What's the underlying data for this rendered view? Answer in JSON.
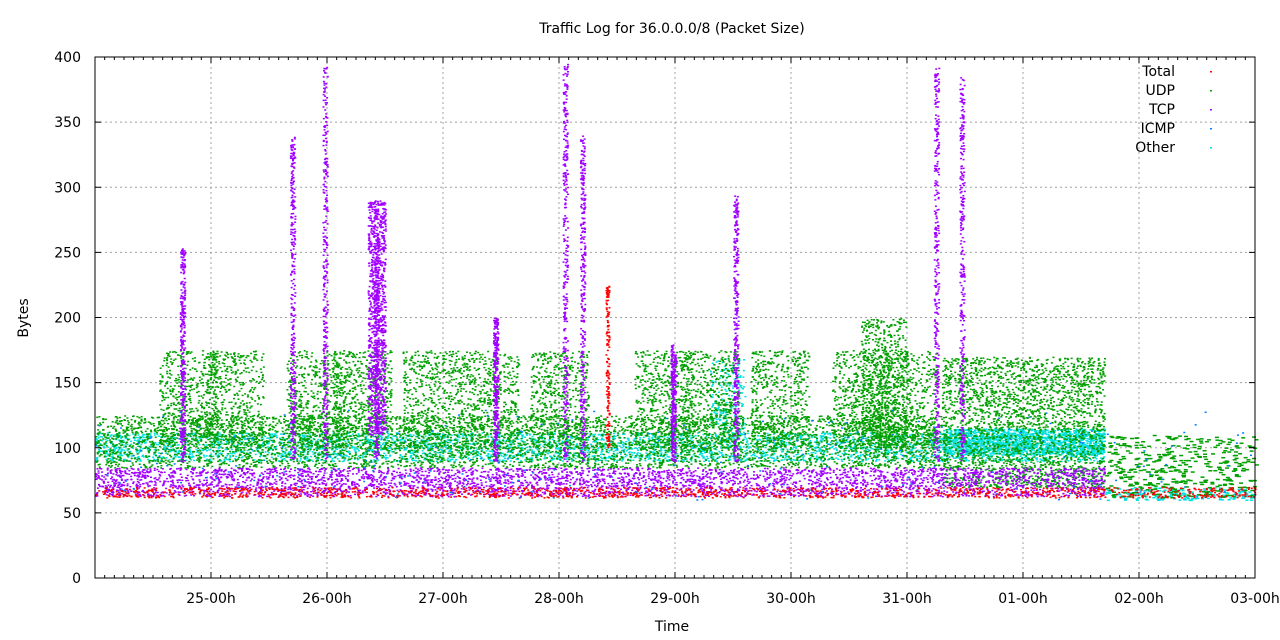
{
  "chart_data": {
    "type": "scatter",
    "title": "Traffic Log for 36.0.0.0/8 (Packet Size)",
    "xlabel": "Time",
    "ylabel": "Bytes",
    "ylim": [
      0,
      400
    ],
    "yticks": [
      0,
      50,
      100,
      150,
      200,
      250,
      300,
      350,
      400
    ],
    "xlim": [
      0,
      10
    ],
    "xticks": [
      {
        "label": "25-00h",
        "value": 1
      },
      {
        "label": "26-00h",
        "value": 2
      },
      {
        "label": "27-00h",
        "value": 3
      },
      {
        "label": "28-00h",
        "value": 4
      },
      {
        "label": "29-00h",
        "value": 5
      },
      {
        "label": "30-00h",
        "value": 6
      },
      {
        "label": "31-00h",
        "value": 7
      },
      {
        "label": "01-00h",
        "value": 8
      },
      {
        "label": "02-00h",
        "value": 9
      },
      {
        "label": "03-00h",
        "value": 10
      }
    ],
    "grid": true,
    "legend_position": "top-right",
    "series": [
      {
        "name": "Total",
        "color": "#ff0000"
      },
      {
        "name": "UDP",
        "color": "#00a000"
      },
      {
        "name": "TCP",
        "color": "#a000ff"
      },
      {
        "name": "ICMP",
        "color": "#0080ff"
      },
      {
        "name": "Other",
        "color": "#00e0e0"
      }
    ]
  }
}
